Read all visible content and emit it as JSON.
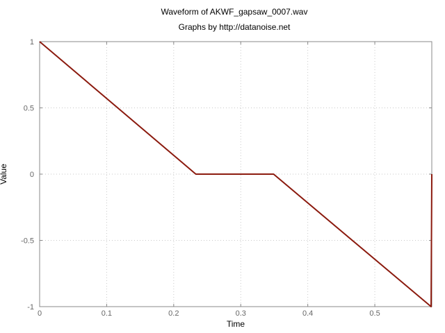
{
  "chart_data": {
    "type": "line",
    "title": "Waveform of AKWF_gapsaw_0007.wav",
    "subtitle": "Graphs by http://datanoise.net",
    "xlabel": "Time",
    "ylabel": "Value",
    "xlim": [
      0,
      0.585
    ],
    "ylim": [
      -1,
      1
    ],
    "xticks": [
      0,
      0.1,
      0.2,
      0.3,
      0.4,
      0.5
    ],
    "xtick_labels": [
      "0",
      "0.1",
      "0.2",
      "0.3",
      "0.4",
      "0.5"
    ],
    "yticks": [
      1,
      0.5,
      0,
      -0.5,
      -1
    ],
    "ytick_labels": [
      "1",
      "0.5",
      "0",
      "-0.5",
      "-1"
    ],
    "grid": true,
    "series": [
      {
        "color": "#8b1a0e",
        "x": [
          0,
          0.233,
          0.349,
          0.584,
          0.585
        ],
        "y": [
          1,
          0,
          0,
          -1,
          0
        ]
      }
    ]
  }
}
